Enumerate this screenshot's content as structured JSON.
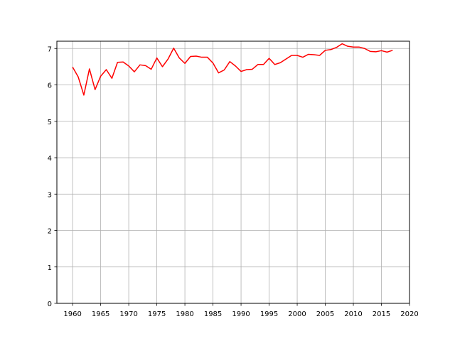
{
  "chart_data": {
    "type": "line",
    "title": "",
    "xlabel": "",
    "ylabel": "",
    "xlim": [
      1957.2,
      2020
    ],
    "ylim": [
      0,
      7.2
    ],
    "xticks": [
      1960,
      1965,
      1970,
      1975,
      1980,
      1985,
      1990,
      1995,
      2000,
      2005,
      2010,
      2015,
      2020
    ],
    "yticks": [
      0,
      1,
      2,
      3,
      4,
      5,
      6,
      7
    ],
    "grid": {
      "x": true,
      "y": true
    },
    "colors": {
      "line": "#ff0000",
      "grid": "#b0b0b0",
      "axes": "#000000"
    },
    "series": [
      {
        "x": [
          1960,
          1961,
          1962,
          1963,
          1964,
          1965,
          1966,
          1967,
          1968,
          1969,
          1970,
          1971,
          1972,
          1973,
          1974,
          1975,
          1976,
          1977,
          1978,
          1979,
          1980,
          1981,
          1982,
          1983,
          1984,
          1985,
          1986,
          1987,
          1988,
          1989,
          1990,
          1991,
          1992,
          1993,
          1994,
          1995,
          1996,
          1997,
          1998,
          1999,
          2000,
          2001,
          2002,
          2003,
          2004,
          2005,
          2006,
          2007,
          2008,
          2009,
          2010,
          2011,
          2012,
          2013,
          2014,
          2015,
          2016,
          2017
        ],
        "values": [
          6.49,
          6.22,
          5.72,
          6.44,
          5.87,
          6.24,
          6.42,
          6.18,
          6.62,
          6.63,
          6.52,
          6.36,
          6.55,
          6.53,
          6.43,
          6.74,
          6.5,
          6.71,
          7.01,
          6.74,
          6.59,
          6.78,
          6.79,
          6.76,
          6.76,
          6.6,
          6.33,
          6.41,
          6.64,
          6.52,
          6.37,
          6.42,
          6.43,
          6.56,
          6.56,
          6.73,
          6.56,
          6.61,
          6.71,
          6.81,
          6.81,
          6.76,
          6.84,
          6.83,
          6.81,
          6.95,
          6.97,
          7.03,
          7.13,
          7.06,
          7.04,
          7.04,
          7.0,
          6.92,
          6.91,
          6.94,
          6.9,
          6.95
        ]
      }
    ]
  }
}
